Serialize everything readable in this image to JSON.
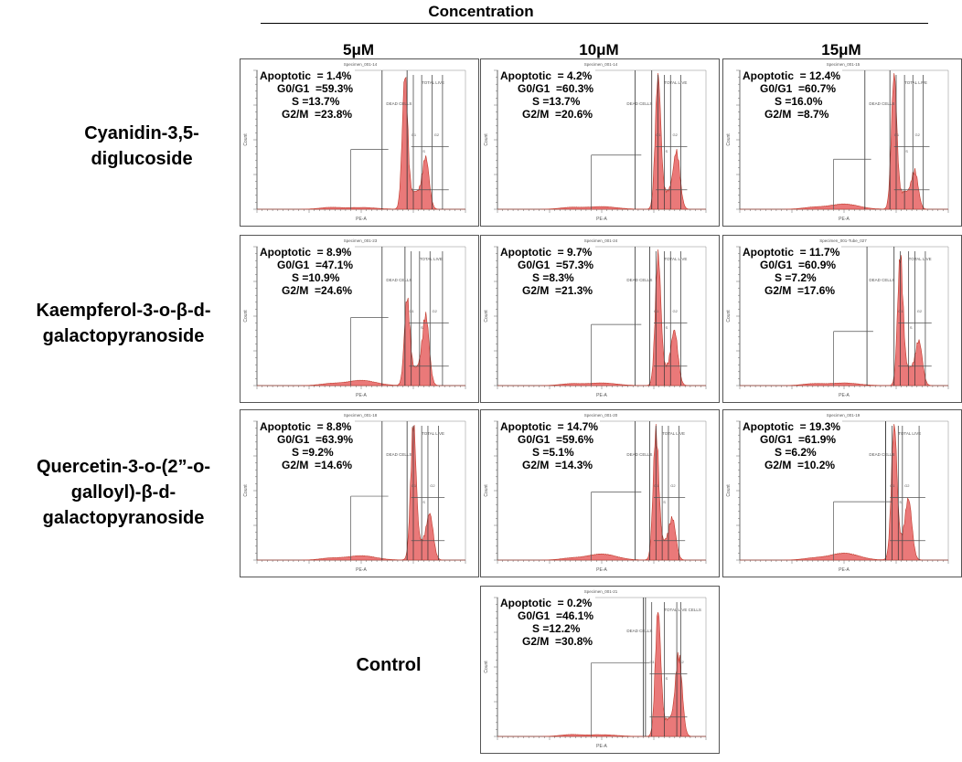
{
  "header": {
    "title": "Concentration"
  },
  "columns": [
    "5μM",
    "10μM",
    "15μM"
  ],
  "rows": [
    "Cyanidin-3,5-\ndiglucoside",
    "Kaempferol-3-o-β-d-\ngalactopyranoside",
    "Quercetin-3-o-(2”-o-\ngalloyl)-β-d-\ngalactopyranoside",
    "Control"
  ],
  "colors": {
    "histogram_fill": "#e86a6a",
    "histogram_stroke": "#c0392b",
    "gate_line": "#333333"
  },
  "chart_data": [
    {
      "type": "histogram",
      "compound": "Cyanidin-3,5-diglucoside",
      "concentration": "5μM",
      "specimen": "Specimen_001-14",
      "xlabel": "PE-A",
      "ylabel": "Count",
      "gate_labels": [
        "DEAD CELLS",
        "TOTAL LIVE",
        "G1",
        "S",
        "G2"
      ],
      "stats": {
        "apoptotic": "Apoptotic  = 1.4%",
        "g0g1": "G0/G1  =59.3%",
        "s": "S =13.7%",
        "g2m": "G2/M  =23.8%"
      }
    },
    {
      "type": "histogram",
      "compound": "Cyanidin-3,5-diglucoside",
      "concentration": "10μM",
      "specimen": "Specimen_001-14",
      "xlabel": "PE-A",
      "ylabel": "Count",
      "gate_labels": [
        "DEAD CELLS",
        "TOTAL LIVE",
        "G1",
        "S",
        "G2"
      ],
      "stats": {
        "apoptotic": "Apoptotic  = 4.2%",
        "g0g1": "G0/G1  =60.3%",
        "s": "S =13.7%",
        "g2m": "G2/M  =20.6%"
      }
    },
    {
      "type": "histogram",
      "compound": "Cyanidin-3,5-diglucoside",
      "concentration": "15μM",
      "specimen": "Specimen_001-15",
      "xlabel": "PE-A",
      "ylabel": "Count",
      "gate_labels": [
        "DEAD CELLS",
        "TOTAL LIVE",
        "G1",
        "S",
        "G2"
      ],
      "stats": {
        "apoptotic": "Apoptotic  = 12.4%",
        "g0g1": "G0/G1  =60.7%",
        "s": "S =16.0%",
        "g2m": "G2/M  =8.7%"
      }
    },
    {
      "type": "histogram",
      "compound": "Kaempferol-3-o-β-d-galactopyranoside",
      "concentration": "5μM",
      "specimen": "Specimen_001-23",
      "xlabel": "PE-A",
      "ylabel": "Count",
      "gate_labels": [
        "DEAD CELLS",
        "TOTAL LIVE",
        "G1",
        "S",
        "G2"
      ],
      "stats": {
        "apoptotic": "Apoptotic  = 8.9%",
        "g0g1": "G0/G1  =47.1%",
        "s": "S =10.9%",
        "g2m": "G2/M  =24.6%"
      }
    },
    {
      "type": "histogram",
      "compound": "Kaempferol-3-o-β-d-galactopyranoside",
      "concentration": "10μM",
      "specimen": "Specimen_001-24",
      "xlabel": "PE-A",
      "ylabel": "Count",
      "gate_labels": [
        "DEAD CELLS",
        "TOTAL LIVE",
        "G1",
        "S",
        "G2"
      ],
      "stats": {
        "apoptotic": "Apoptotic  = 9.7%",
        "g0g1": "G0/G1  =57.3%",
        "s": "S =8.3%",
        "g2m": "G2/M  =21.3%"
      }
    },
    {
      "type": "histogram",
      "compound": "Kaempferol-3-o-β-d-galactopyranoside",
      "concentration": "15μM",
      "specimen": "Specimen_001-Tube_027",
      "xlabel": "PE-A",
      "ylabel": "Count",
      "gate_labels": [
        "DEAD CELLS",
        "TOTAL LIVE",
        "G1",
        "S",
        "G2"
      ],
      "stats": {
        "apoptotic": "Apoptotic  = 11.7%",
        "g0g1": "G0/G1  =60.9%",
        "s": "S =7.2%",
        "g2m": "G2/M  =17.6%"
      }
    },
    {
      "type": "histogram",
      "compound": "Quercetin-3-o-(2”-o-galloyl)-β-d-galactopyranoside",
      "concentration": "5μM",
      "specimen": "Specimen_001-18",
      "xlabel": "PE-A",
      "ylabel": "Count",
      "gate_labels": [
        "DEAD CELLS",
        "TOTAL LIVE",
        "G1",
        "S",
        "G2"
      ],
      "stats": {
        "apoptotic": "Apoptotic  = 8.8%",
        "g0g1": "G0/G1  =63.9%",
        "s": "S =9.2%",
        "g2m": "G2/M  =14.6%"
      }
    },
    {
      "type": "histogram",
      "compound": "Quercetin-3-o-(2”-o-galloyl)-β-d-galactopyranoside",
      "concentration": "10μM",
      "specimen": "Specimen_001-20",
      "xlabel": "PE-A",
      "ylabel": "Count",
      "gate_labels": [
        "DEAD CELLS",
        "TOTAL LIVE",
        "G1",
        "S",
        "G2"
      ],
      "stats": {
        "apoptotic": "Apoptotic  = 14.7%",
        "g0g1": "G0/G1  =59.6%",
        "s": "S =5.1%",
        "g2m": "G2/M  =14.3%"
      }
    },
    {
      "type": "histogram",
      "compound": "Quercetin-3-o-(2”-o-galloyl)-β-d-galactopyranoside",
      "concentration": "15μM",
      "specimen": "Specimen_001-19",
      "xlabel": "PE-A",
      "ylabel": "Count",
      "gate_labels": [
        "DEAD CELLS",
        "TOTAL LIVE",
        "G1",
        "S",
        "G2"
      ],
      "stats": {
        "apoptotic": "Apoptotic  = 19.3%",
        "g0g1": "G0/G1  =61.9%",
        "s": "S =6.2%",
        "g2m": "G2/M  =10.2%"
      }
    },
    {
      "type": "histogram",
      "compound": "Control",
      "concentration": "",
      "specimen": "Specimen_001-21",
      "xlabel": "PE-A",
      "ylabel": "Count",
      "gate_labels": [
        "DEAD CELLS",
        "TOTAL LIVE CELLS",
        "G1",
        "S",
        "G2"
      ],
      "stats": {
        "apoptotic": "Apoptotic  = 0.2%",
        "g0g1": "G0/G1  =46.1%",
        "s": "S =12.2%",
        "g2m": "G2/M  =30.8%"
      }
    }
  ]
}
